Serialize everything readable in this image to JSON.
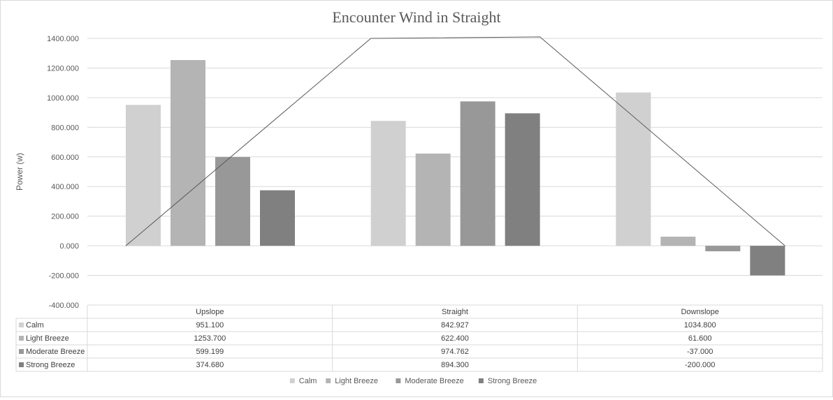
{
  "chart_data": {
    "type": "bar",
    "title": "Encounter Wind in Straight",
    "ylabel": "Power (w)",
    "xlabel": "",
    "ylim": [
      -400,
      1400
    ],
    "yticks": [
      1400,
      1200,
      1000,
      800,
      600,
      400,
      200,
      0,
      -200,
      -400
    ],
    "ytick_labels": [
      "1400.000",
      "1200.000",
      "1000.000",
      "800.000",
      "600.000",
      "400.000",
      "200.000",
      "0.000",
      "-200.000",
      "-400.000"
    ],
    "grid": true,
    "legend_position": "bottom",
    "data_table": true,
    "categories": [
      "Upslope",
      "Straight",
      "Downslope"
    ],
    "series": [
      {
        "name": "Calm",
        "color": "#d0d0d0",
        "values": [
          951.1,
          842.927,
          1034.8
        ],
        "labels": [
          "951.100",
          "842.927",
          "1034.800"
        ]
      },
      {
        "name": "Light Breeze",
        "color": "#b4b4b4",
        "values": [
          1253.7,
          622.4,
          61.6
        ],
        "labels": [
          "1253.700",
          "622.400",
          "61.600"
        ]
      },
      {
        "name": "Moderate Breeze",
        "color": "#989898",
        "values": [
          599.199,
          974.762,
          -37.0
        ],
        "labels": [
          "599.199",
          "974.762",
          "-37.000"
        ]
      },
      {
        "name": "Strong Breeze",
        "color": "#808080",
        "values": [
          374.68,
          894.3,
          -200.0
        ],
        "labels": [
          "374.680",
          "894.300",
          "-200.000"
        ]
      }
    ],
    "overlay_line": {
      "color": "#595959",
      "points": [
        {
          "category": "Upslope",
          "position": "start",
          "value": 0
        },
        {
          "category": "Straight",
          "position": "start",
          "value": 1400
        },
        {
          "category": "Straight",
          "position": "end",
          "value": 1410
        },
        {
          "category": "Downslope",
          "position": "end",
          "value": 0
        }
      ]
    }
  }
}
